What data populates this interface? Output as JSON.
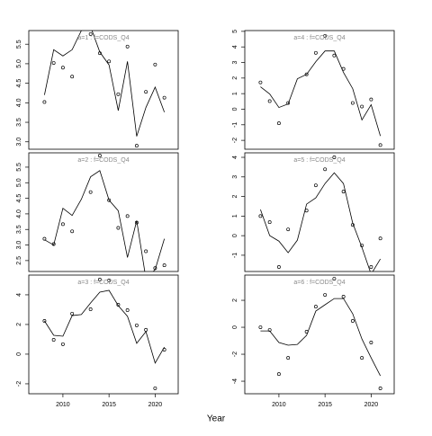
{
  "xlabel": "Year",
  "chart_data": [
    {
      "type": "line",
      "title": "a=1  :  f=CODS_Q4",
      "x": [
        2008,
        2009,
        2010,
        2011,
        2012,
        2013,
        2014,
        2015,
        2016,
        2017,
        2018,
        2019,
        2020,
        2021
      ],
      "xlim": [
        2006.3,
        2022.5
      ],
      "ylim": [
        2.81,
        5.85
      ],
      "yticks": [
        {
          "value": 3,
          "label": "3.0"
        },
        3.5,
        {
          "value": 4,
          "label": "4.0"
        },
        4.5,
        {
          "value": 5,
          "label": "5.0"
        },
        5.5
      ],
      "series": [
        {
          "type": "scatter",
          "color": "#000000",
          "values": [
            4.02,
            5.02,
            4.9,
            4.67,
            null,
            5.76,
            5.27,
            5.06,
            4.22,
            5.44,
            2.9,
            4.28,
            4.98,
            4.13
          ]
        },
        {
          "type": "line",
          "color": "#000000",
          "values": [
            4.2,
            5.36,
            5.2,
            5.36,
            5.85,
            5.95,
            5.3,
            4.97,
            3.8,
            5.06,
            3.14,
            3.88,
            4.4,
            3.76
          ]
        }
      ]
    },
    {
      "type": "line",
      "title": "a=2  :  f=CODS_Q4",
      "x": [
        2008,
        2009,
        2010,
        2011,
        2012,
        2013,
        2014,
        2015,
        2016,
        2017,
        2018,
        2019,
        2020,
        2021
      ],
      "xlim": [
        2006.3,
        2022.5
      ],
      "ylim": [
        2.15,
        5.96
      ],
      "yticks": [
        2.5,
        {
          "value": 3,
          "label": "3.0"
        },
        3.5,
        {
          "value": 4,
          "label": "4.0"
        },
        4.5,
        {
          "value": 5,
          "label": "5.0"
        },
        5.5
      ],
      "series": [
        {
          "type": "scatter",
          "color": "#000000",
          "values": [
            3.2,
            3.03,
            3.67,
            3.44,
            null,
            4.7,
            5.87,
            4.44,
            3.55,
            3.93,
            3.72,
            2.8,
            2.26,
            2.35
          ]
        },
        {
          "type": "line",
          "color": "#000000",
          "values": [
            3.17,
            3.0,
            4.18,
            3.95,
            4.47,
            5.19,
            5.39,
            4.44,
            4.1,
            2.6,
            3.78,
            1.92,
            2.21,
            3.2
          ]
        }
      ]
    },
    {
      "type": "line",
      "title": "a=3  :  f=CODS_Q4",
      "x": [
        2008,
        2009,
        2010,
        2011,
        2012,
        2013,
        2014,
        2015,
        2016,
        2017,
        2018,
        2019,
        2020,
        2021
      ],
      "xlim": [
        2006.3,
        2022.5
      ],
      "xticks": [
        2010,
        2015,
        2020
      ],
      "ylim": [
        -2.67,
        5.33
      ],
      "yticks": [
        -2,
        0,
        2,
        4
      ],
      "series": [
        {
          "type": "scatter",
          "color": "#000000",
          "values": [
            2.24,
            0.97,
            0.67,
            2.73,
            null,
            3.03,
            5.03,
            4.97,
            3.33,
            2.97,
            1.94,
            1.64,
            -2.3,
            0.3
          ]
        },
        {
          "type": "line",
          "color": "#000000",
          "values": [
            2.24,
            1.27,
            1.21,
            2.6,
            2.67,
            3.45,
            4.18,
            4.3,
            3.27,
            2.55,
            0.73,
            1.52,
            -0.6,
            0.48
          ]
        }
      ]
    },
    {
      "type": "line",
      "title": "a=4  :  f=CODS_Q4",
      "x": [
        2008,
        2009,
        2010,
        2011,
        2012,
        2013,
        2014,
        2015,
        2016,
        2017,
        2018,
        2019,
        2020,
        2021
      ],
      "xlim": [
        2006.3,
        2022.5
      ],
      "ylim": [
        -2.57,
        5.05
      ],
      "yticks": [
        -2,
        -1,
        0,
        1,
        2,
        3,
        4,
        5
      ],
      "series": [
        {
          "type": "scatter",
          "color": "#000000",
          "values": [
            1.72,
            0.52,
            -0.9,
            0.4,
            null,
            2.24,
            3.62,
            4.71,
            3.45,
            2.59,
            0.4,
            0.17,
            0.63,
            -2.3
          ]
        },
        {
          "type": "line",
          "color": "#000000",
          "values": [
            1.44,
            0.98,
            0.11,
            0.34,
            1.95,
            2.24,
            3.05,
            3.74,
            3.74,
            2.36,
            1.32,
            -0.69,
            0.29,
            -1.72
          ]
        }
      ]
    },
    {
      "type": "line",
      "title": "a=5  :  f=CODS_Q4",
      "x": [
        2008,
        2009,
        2010,
        2011,
        2012,
        2013,
        2014,
        2015,
        2016,
        2017,
        2018,
        2019,
        2020,
        2021
      ],
      "xlim": [
        2006.3,
        2022.5
      ],
      "ylim": [
        -1.83,
        4.23
      ],
      "yticks": [
        -1,
        0,
        1,
        2,
        3,
        4
      ],
      "series": [
        {
          "type": "scatter",
          "color": "#000000",
          "values": [
            1.0,
            0.69,
            -1.6,
            0.32,
            null,
            1.28,
            2.57,
            3.39,
            4.0,
            2.25,
            0.55,
            -0.5,
            -1.6,
            -0.14
          ]
        },
        {
          "type": "line",
          "color": "#000000",
          "values": [
            1.33,
            0,
            -0.28,
            -0.87,
            -0.23,
            1.61,
            1.93,
            2.66,
            3.21,
            2.66,
            0.64,
            -0.6,
            -1.97,
            -1.19
          ]
        }
      ]
    },
    {
      "type": "line",
      "title": "a=6  :  f=CODS_Q4",
      "x": [
        2008,
        2009,
        2010,
        2011,
        2012,
        2013,
        2014,
        2015,
        2016,
        2017,
        2018,
        2019,
        2020,
        2021
      ],
      "xlim": [
        2006.3,
        2022.5
      ],
      "xticks": [
        2010,
        2015,
        2020
      ],
      "ylim": [
        -4.93,
        3.87
      ],
      "yticks": [
        -4,
        -2,
        0,
        2
      ],
      "series": [
        {
          "type": "scatter",
          "color": "#000000",
          "values": [
            0,
            -0.2,
            -3.47,
            -2.27,
            null,
            -0.33,
            1.53,
            2.4,
            3.6,
            2.27,
            0.47,
            -2.27,
            -1.13,
            -4.53
          ]
        },
        {
          "type": "line",
          "color": "#000000",
          "values": [
            -0.27,
            -0.27,
            -1.13,
            -1.33,
            -1.27,
            -0.6,
            1.2,
            1.67,
            2.13,
            2.13,
            1.0,
            -0.87,
            -2.27,
            -3.6
          ]
        }
      ]
    }
  ]
}
